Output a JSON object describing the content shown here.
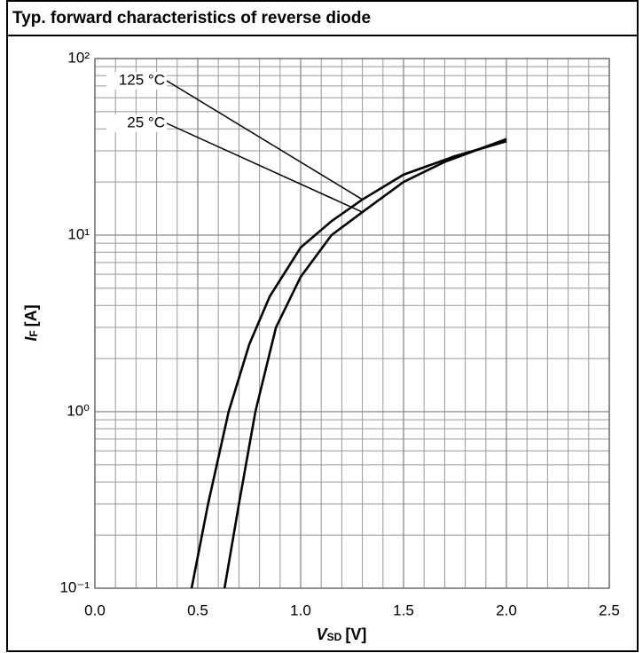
{
  "chart_data": {
    "type": "line",
    "title": "Typ. forward characteristics of reverse diode",
    "x_label": {
      "symbol": "V",
      "subscript": "SD",
      "unit": "[V]"
    },
    "y_label": {
      "symbol": "I",
      "subscript": "F",
      "unit": "[A]"
    },
    "xlim": [
      0,
      2.5
    ],
    "xticks": [
      {
        "value": 0,
        "label": "0.0"
      },
      0.5,
      {
        "value": 1,
        "label": "1.0"
      },
      1.5,
      {
        "value": 2,
        "label": "2.0"
      },
      2.5
    ],
    "xminorticks": [
      0.1,
      0.2,
      0.3,
      0.4,
      0.6,
      0.7,
      0.8,
      0.9,
      1.1,
      1.2,
      1.3,
      1.4,
      1.6,
      1.7,
      1.8,
      1.9,
      2.1,
      2.2,
      2.3,
      2.4
    ],
    "ylim": [
      0.1,
      100
    ],
    "ylog": true,
    "yticks": [
      {
        "value": 0.1,
        "label": "10⁻¹"
      },
      {
        "value": 1,
        "label": "10⁰"
      },
      {
        "value": 10,
        "label": "10¹"
      },
      {
        "value": 100,
        "label": "10²"
      }
    ],
    "yminorticks": [
      0.2,
      0.3,
      0.4,
      0.5,
      0.6,
      0.7,
      0.8,
      0.9,
      2,
      3,
      4,
      5,
      6,
      7,
      8,
      9,
      20,
      30,
      40,
      50,
      60,
      70,
      80,
      90
    ],
    "grid": true,
    "series": [
      {
        "name": "125 °C",
        "color": "#000000",
        "x": [
          0.47,
          0.55,
          0.65,
          0.75,
          0.85,
          1.0,
          1.15,
          1.3,
          1.5,
          1.75,
          2.0
        ],
        "values": [
          0.1,
          0.3,
          1.0,
          2.4,
          4.5,
          8.5,
          12,
          15.9,
          22,
          28,
          34
        ]
      },
      {
        "name": "25 °C",
        "color": "#000000",
        "x": [
          0.63,
          0.7,
          0.78,
          0.88,
          1.0,
          1.15,
          1.3,
          1.5,
          1.7,
          2.0
        ],
        "values": [
          0.1,
          0.3,
          1.0,
          3.0,
          5.8,
          10,
          13.5,
          20,
          26,
          35
        ]
      }
    ]
  }
}
